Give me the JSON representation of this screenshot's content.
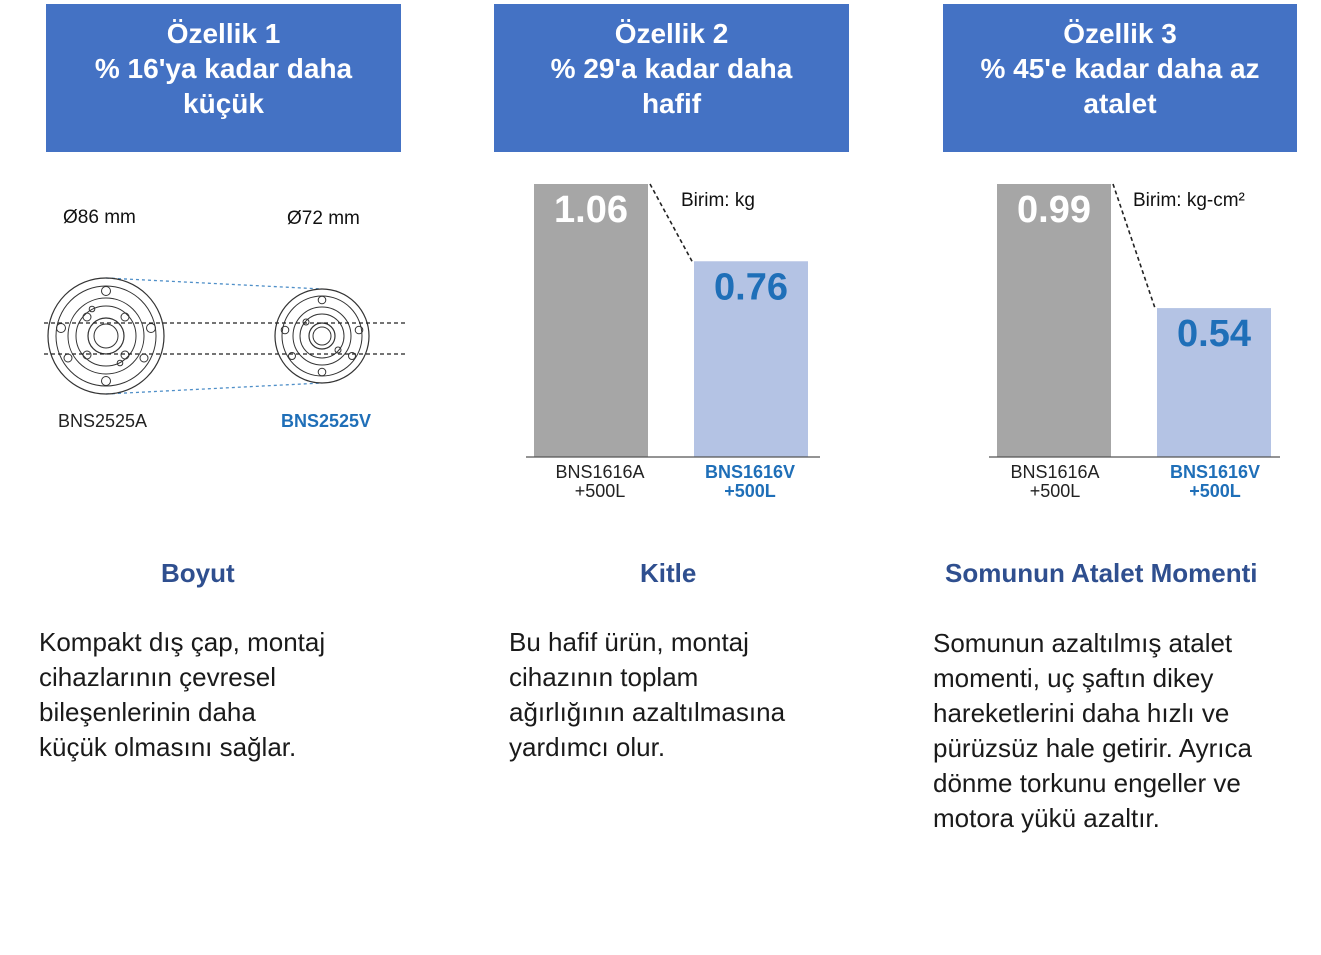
{
  "features": [
    {
      "banner": [
        "Özellik 1",
        "% 16'ya kadar daha",
        "küçük"
      ],
      "section_title": "Boyut",
      "description": [
        "Kompakt dış çap, montaj",
        "cihazlarının çevresel",
        "bileşenlerinin daha",
        "küçük olmasını sağlar."
      ]
    },
    {
      "banner": [
        "Özellik 2",
        "% 29'a kadar daha",
        "hafif"
      ],
      "section_title": "Kitle",
      "description": [
        "Bu hafif ürün, montaj",
        "cihazının toplam",
        "ağırlığının azaltılmasına",
        "yardımcı olur."
      ]
    },
    {
      "banner": [
        "Özellik 3",
        "% 45'e kadar daha az",
        "atalet"
      ],
      "section_title": "Somunun Atalet Momenti",
      "description": [
        "Somunun azaltılmış atalet",
        "momenti, uç şaftın dikey",
        "hareketlerini daha hızlı ve",
        "pürüzsüz hale getirir. Ayrıca",
        "dönme torkunu engeller ve",
        "motora yükü azaltır."
      ]
    }
  ],
  "size_diagram": {
    "left_diameter": "Ø86 mm",
    "right_diameter": "Ø72 mm",
    "left_model": "BNS2525A",
    "right_model": "BNS2525V"
  },
  "colors": {
    "banner": "#4472c4",
    "title": "#2f4f8f",
    "old_bar": "#a6a6a6",
    "new_bar": "#b4c3e4",
    "new_text": "#1f6fb8"
  },
  "chart_data": [
    {
      "type": "bar",
      "unit_label": "Birim: kg",
      "categories": [
        [
          "BNS1616A",
          "+500L"
        ],
        [
          "BNS1616V",
          "+500L"
        ]
      ],
      "values": [
        1.06,
        0.76
      ],
      "value_labels": [
        "1.06",
        "0.76"
      ],
      "ylim": [
        0,
        1.06
      ]
    },
    {
      "type": "bar",
      "unit_label": "Birim: kg-cm²",
      "categories": [
        [
          "BNS1616A",
          "+500L"
        ],
        [
          "BNS1616V",
          "+500L"
        ]
      ],
      "values": [
        0.99,
        0.54
      ],
      "value_labels": [
        "0.99",
        "0.54"
      ],
      "ylim": [
        0,
        0.99
      ]
    }
  ]
}
